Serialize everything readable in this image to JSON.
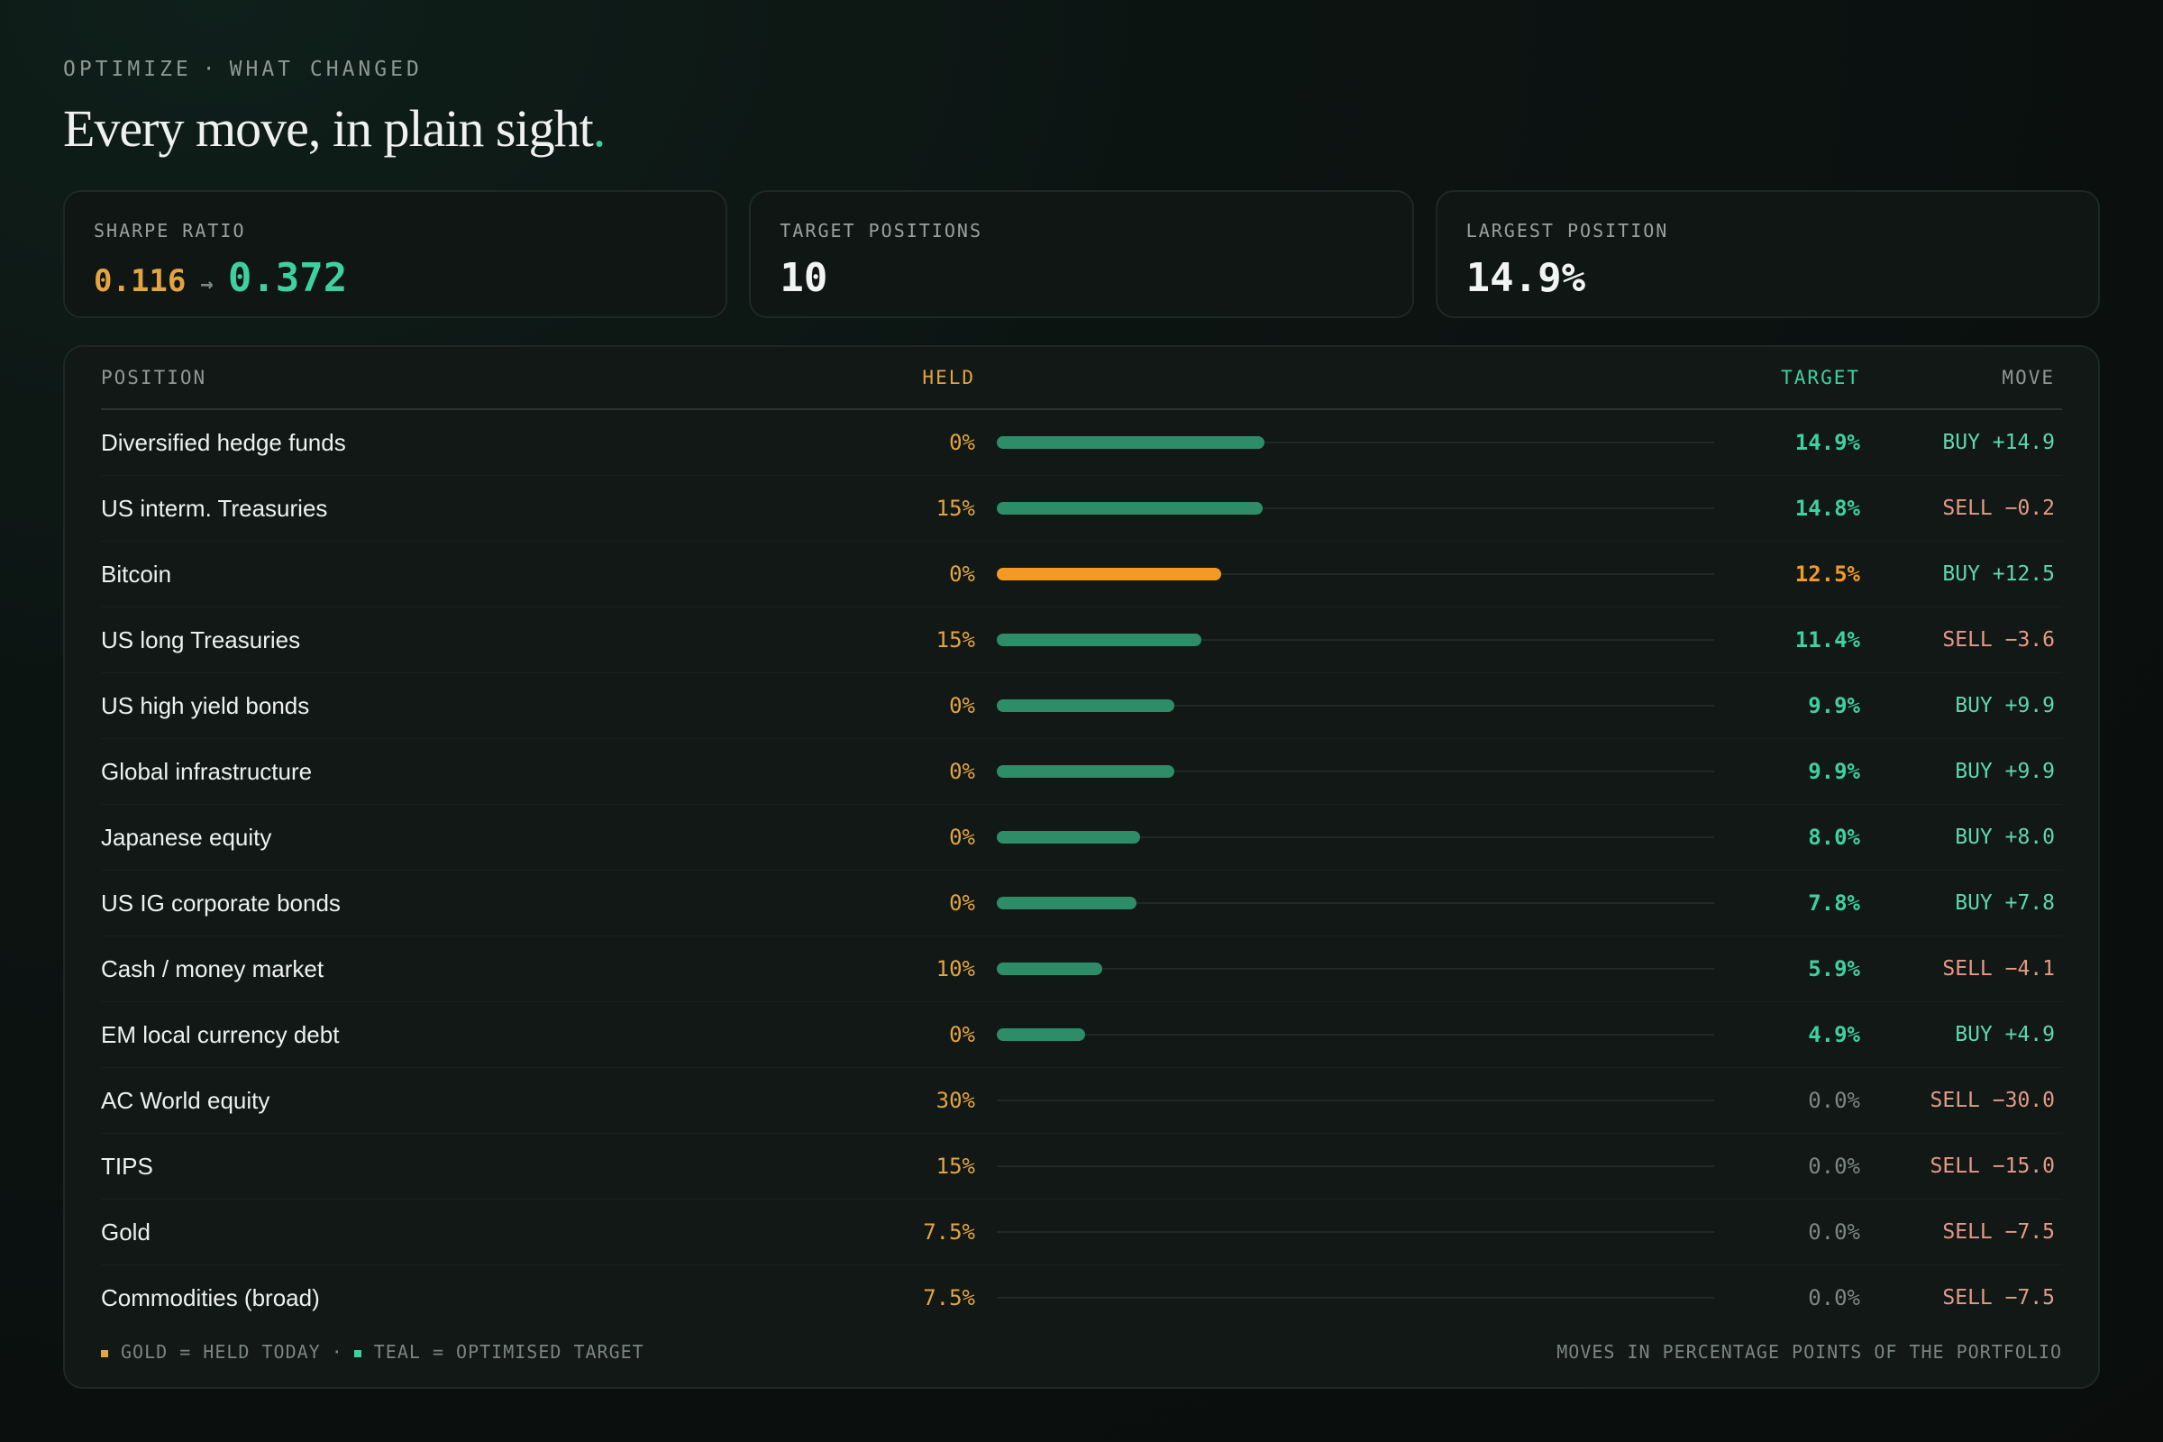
{
  "header": {
    "eyebrow_left": "OPTIMIZE",
    "eyebrow_sep": "·",
    "eyebrow_right": "WHAT CHANGED",
    "headline": "Every move, in plain sight",
    "headline_dot": "."
  },
  "cards": {
    "sharpe": {
      "label": "SHARPE RATIO",
      "old": "0.116",
      "arrow": "→",
      "new": "0.372"
    },
    "positions": {
      "label": "TARGET POSITIONS",
      "value": "10"
    },
    "largest": {
      "label": "LARGEST POSITION",
      "value": "14.9%"
    }
  },
  "table": {
    "headers": {
      "position": "POSITION",
      "held": "HELD",
      "target": "TARGET",
      "move": "MOVE"
    },
    "rows": [
      {
        "name": "Diversified hedge funds",
        "held": "0%",
        "target": "14.9%",
        "target_value": 14.9,
        "move": "BUY +14.9",
        "move_type": "buy",
        "highlight": false
      },
      {
        "name": "US interm. Treasuries",
        "held": "15%",
        "target": "14.8%",
        "target_value": 14.8,
        "move": "SELL −0.2",
        "move_type": "sell",
        "highlight": false
      },
      {
        "name": "Bitcoin",
        "held": "0%",
        "target": "12.5%",
        "target_value": 12.5,
        "move": "BUY +12.5",
        "move_type": "buy",
        "highlight": true
      },
      {
        "name": "US long Treasuries",
        "held": "15%",
        "target": "11.4%",
        "target_value": 11.4,
        "move": "SELL −3.6",
        "move_type": "sell",
        "highlight": false
      },
      {
        "name": "US high yield bonds",
        "held": "0%",
        "target": "9.9%",
        "target_value": 9.9,
        "move": "BUY +9.9",
        "move_type": "buy",
        "highlight": false
      },
      {
        "name": "Global infrastructure",
        "held": "0%",
        "target": "9.9%",
        "target_value": 9.9,
        "move": "BUY +9.9",
        "move_type": "buy",
        "highlight": false
      },
      {
        "name": "Japanese equity",
        "held": "0%",
        "target": "8.0%",
        "target_value": 8.0,
        "move": "BUY +8.0",
        "move_type": "buy",
        "highlight": false
      },
      {
        "name": "US IG corporate bonds",
        "held": "0%",
        "target": "7.8%",
        "target_value": 7.8,
        "move": "BUY +7.8",
        "move_type": "buy",
        "highlight": false
      },
      {
        "name": "Cash / money market",
        "held": "10%",
        "target": "5.9%",
        "target_value": 5.9,
        "move": "SELL −4.1",
        "move_type": "sell",
        "highlight": false
      },
      {
        "name": "EM local currency debt",
        "held": "0%",
        "target": "4.9%",
        "target_value": 4.9,
        "move": "BUY +4.9",
        "move_type": "buy",
        "highlight": false
      },
      {
        "name": "AC World equity",
        "held": "30%",
        "target": "0.0%",
        "target_value": 0.0,
        "move": "SELL −30.0",
        "move_type": "sell",
        "highlight": false
      },
      {
        "name": "TIPS",
        "held": "15%",
        "target": "0.0%",
        "target_value": 0.0,
        "move": "SELL −15.0",
        "move_type": "sell",
        "highlight": false
      },
      {
        "name": "Gold",
        "held": "7.5%",
        "target": "0.0%",
        "target_value": 0.0,
        "move": "SELL −7.5",
        "move_type": "sell",
        "highlight": false
      },
      {
        "name": "Commodities (broad)",
        "held": "7.5%",
        "target": "0.0%",
        "target_value": 0.0,
        "move": "SELL −7.5",
        "move_type": "sell",
        "highlight": false
      }
    ],
    "bar_max": 40
  },
  "legend": {
    "gold": "GOLD = HELD TODAY",
    "sep": "·",
    "teal": "TEAL = OPTIMISED TARGET",
    "note": "MOVES IN PERCENTAGE POINTS OF THE PORTFOLIO"
  },
  "colors": {
    "gold": "#e3a441",
    "teal": "#3fd0a0",
    "bar_teal": "#2e8d69",
    "bar_hot": "#f29a24",
    "buy": "#5fd6b0",
    "sell": "#e69a86",
    "zero": "#7c8783"
  }
}
